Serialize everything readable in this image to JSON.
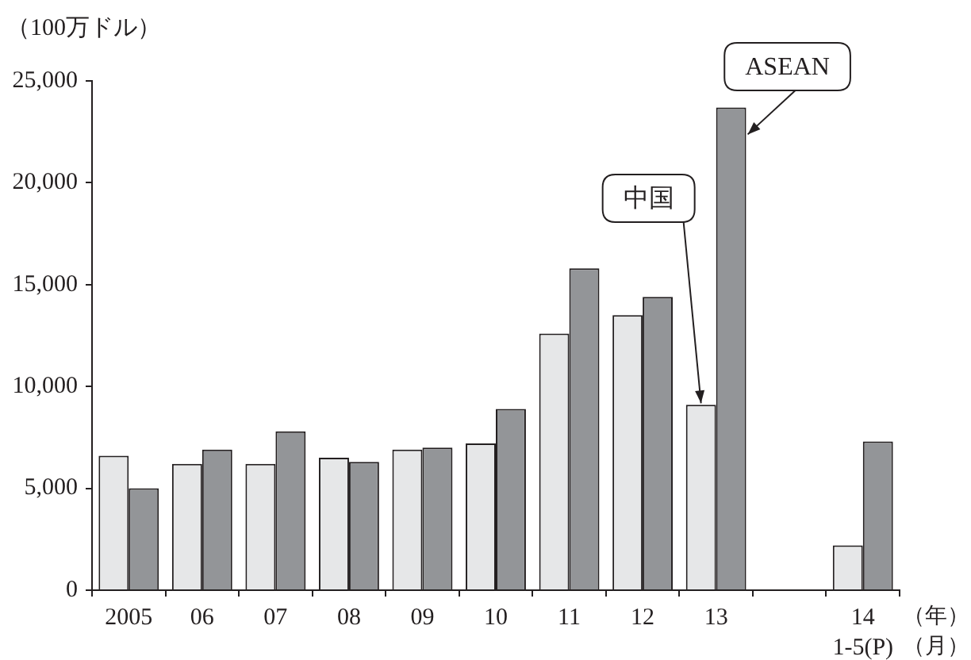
{
  "chart_data": {
    "type": "bar",
    "ylabel": "（100万ドル）",
    "xlabel": "（年）（月）",
    "categories": [
      "2005",
      "06",
      "07",
      "08",
      "09",
      "10",
      "11",
      "12",
      "13",
      null,
      "14\n1-5(P)"
    ],
    "series": [
      {
        "name": "中国",
        "color": "#e6e7e8",
        "values": [
          6600,
          6200,
          6200,
          6500,
          6900,
          7200,
          12600,
          13500,
          9100,
          null,
          2200
        ]
      },
      {
        "name": "ASEAN",
        "color": "#939598",
        "values": [
          5000,
          6900,
          7800,
          6300,
          7000,
          8900,
          15800,
          14400,
          23700,
          null,
          7300
        ]
      }
    ],
    "ylim": [
      0,
      25000
    ],
    "yticks": [
      0,
      {
        "value": 5000,
        "label": "5,000"
      },
      {
        "value": 10000,
        "label": "10,000"
      },
      {
        "value": 15000,
        "label": "15,000"
      },
      {
        "value": 20000,
        "label": "20,000"
      },
      {
        "value": 25000,
        "label": "25,000"
      }
    ],
    "grid": false,
    "legend": false
  }
}
